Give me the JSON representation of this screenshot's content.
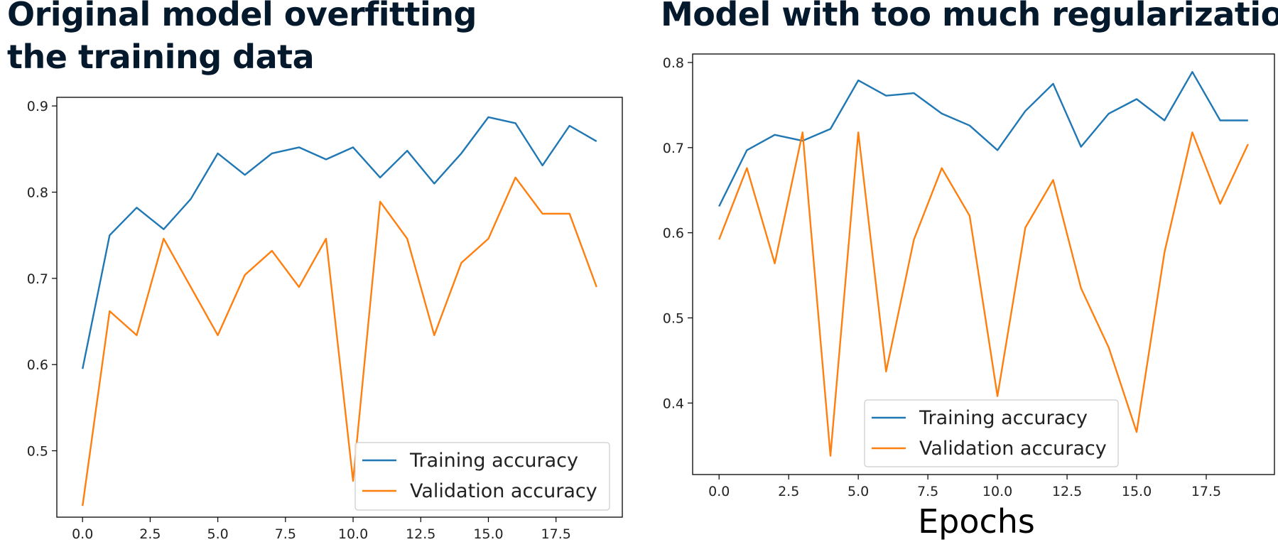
{
  "titles": {
    "left": "Original model overfitting the training data",
    "right": "Model with too much regularization"
  },
  "chart_data": [
    {
      "type": "line",
      "title": "Original model overfitting the training data",
      "xlabel": "",
      "ylabel": "",
      "xlim": [
        -0.95,
        19.95
      ],
      "ylim": [
        0.423,
        0.91
      ],
      "xticks": [
        0.0,
        2.5,
        5.0,
        7.5,
        10.0,
        12.5,
        15.0,
        17.5
      ],
      "xtick_labels": [
        "0.0",
        "2.5",
        "5.0",
        "7.5",
        "10.0",
        "12.5",
        "15.0",
        "17.5"
      ],
      "yticks": [
        0.5,
        0.6,
        0.7,
        0.8,
        0.9
      ],
      "ytick_labels": [
        "0.5",
        "0.6",
        "0.7",
        "0.8",
        "0.9"
      ],
      "grid": false,
      "legend": "lower-right",
      "x": [
        0,
        1,
        2,
        3,
        4,
        5,
        6,
        7,
        8,
        9,
        10,
        11,
        12,
        13,
        14,
        15,
        16,
        17,
        18,
        19
      ],
      "series": [
        {
          "name": "Training accuracy",
          "color": "#1f77b4",
          "values": [
            0.595,
            0.75,
            0.782,
            0.757,
            0.792,
            0.845,
            0.82,
            0.845,
            0.852,
            0.838,
            0.852,
            0.817,
            0.848,
            0.81,
            0.845,
            0.887,
            0.88,
            0.831,
            0.877,
            0.859
          ]
        },
        {
          "name": "Validation accuracy",
          "color": "#ff7f0e",
          "values": [
            0.436,
            0.662,
            0.634,
            0.746,
            0.69,
            0.634,
            0.704,
            0.732,
            0.69,
            0.746,
            0.465,
            0.789,
            0.746,
            0.634,
            0.718,
            0.746,
            0.817,
            0.775,
            0.775,
            0.69
          ]
        }
      ]
    },
    {
      "type": "line",
      "title": "Model with too much regularization",
      "xlabel": "Epochs",
      "ylabel": "",
      "xlim": [
        -0.95,
        19.95
      ],
      "ylim": [
        0.316,
        0.81
      ],
      "xticks": [
        0.0,
        2.5,
        5.0,
        7.5,
        10.0,
        12.5,
        15.0,
        17.5
      ],
      "xtick_labels": [
        "0.0",
        "2.5",
        "5.0",
        "7.5",
        "10.0",
        "12.5",
        "15.0",
        "17.5"
      ],
      "yticks": [
        0.4,
        0.5,
        0.6,
        0.7,
        0.8
      ],
      "ytick_labels": [
        "0.4",
        "0.5",
        "0.6",
        "0.7",
        "0.8"
      ],
      "grid": false,
      "legend": "lower-center",
      "x": [
        0,
        1,
        2,
        3,
        4,
        5,
        6,
        7,
        8,
        9,
        10,
        11,
        12,
        13,
        14,
        15,
        16,
        17,
        18,
        19
      ],
      "series": [
        {
          "name": "Training accuracy",
          "color": "#1f77b4",
          "values": [
            0.631,
            0.697,
            0.715,
            0.708,
            0.722,
            0.779,
            0.761,
            0.764,
            0.74,
            0.726,
            0.697,
            0.743,
            0.775,
            0.701,
            0.74,
            0.757,
            0.732,
            0.789,
            0.732,
            0.732
          ]
        },
        {
          "name": "Validation accuracy",
          "color": "#ff7f0e",
          "values": [
            0.592,
            0.676,
            0.564,
            0.718,
            0.338,
            0.718,
            0.437,
            0.592,
            0.676,
            0.62,
            0.408,
            0.606,
            0.662,
            0.535,
            0.465,
            0.366,
            0.577,
            0.718,
            0.634,
            0.704
          ]
        }
      ]
    }
  ]
}
